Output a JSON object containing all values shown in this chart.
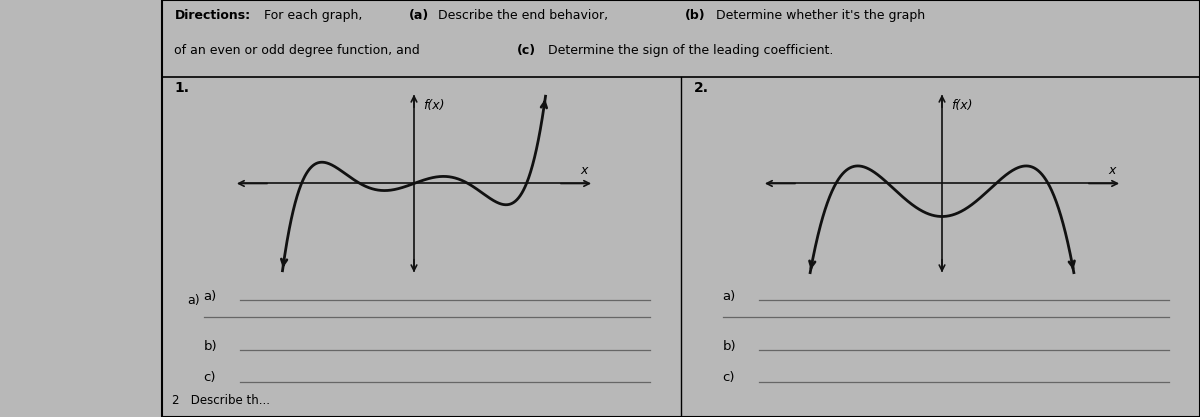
{
  "bg_color": "#b8b8b8",
  "paper_color": "#ebebeb",
  "line_color": "#111111",
  "figsize": [
    12.0,
    4.17
  ],
  "dpi": 100,
  "title_bold": "Directions:",
  "title_rest1": " For each graph, ",
  "title_a": "(a)",
  "title_rest2": " Describe the end behavior, ",
  "title_b": "(b)",
  "title_rest3": " Determine whether it's the graph",
  "title_line2_1": "of an even or odd degree function, and ",
  "title_c": "(c)",
  "title_line2_2": " Determine the sign of the leading coefficient.",
  "label1": "1.",
  "label2": "2.",
  "fx_label": "f(x)",
  "x_label": "x",
  "answer_a": "a)",
  "answer_b": "b)",
  "answer_c": "c)",
  "bottom_text": "2   Describe th...",
  "font_size_title": 9.0,
  "font_size_labels": 9.5,
  "font_size_numbers": 10.0
}
